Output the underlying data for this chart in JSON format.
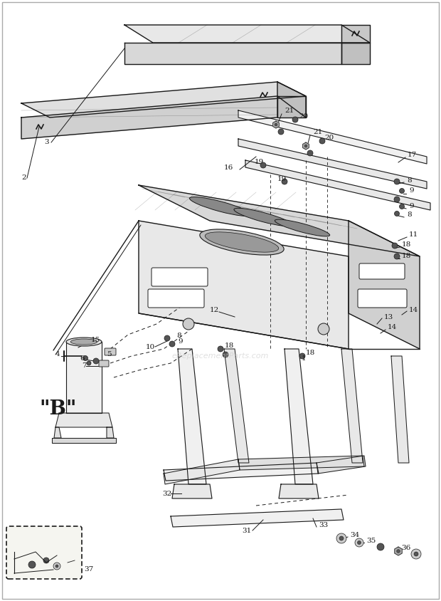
{
  "bg_color": "#ffffff",
  "lc": "#1a1a1a",
  "watermark": "eReplacementParts.com",
  "label_B": "\"B\"",
  "figsize": [
    6.2,
    8.44
  ],
  "dpi": 100
}
